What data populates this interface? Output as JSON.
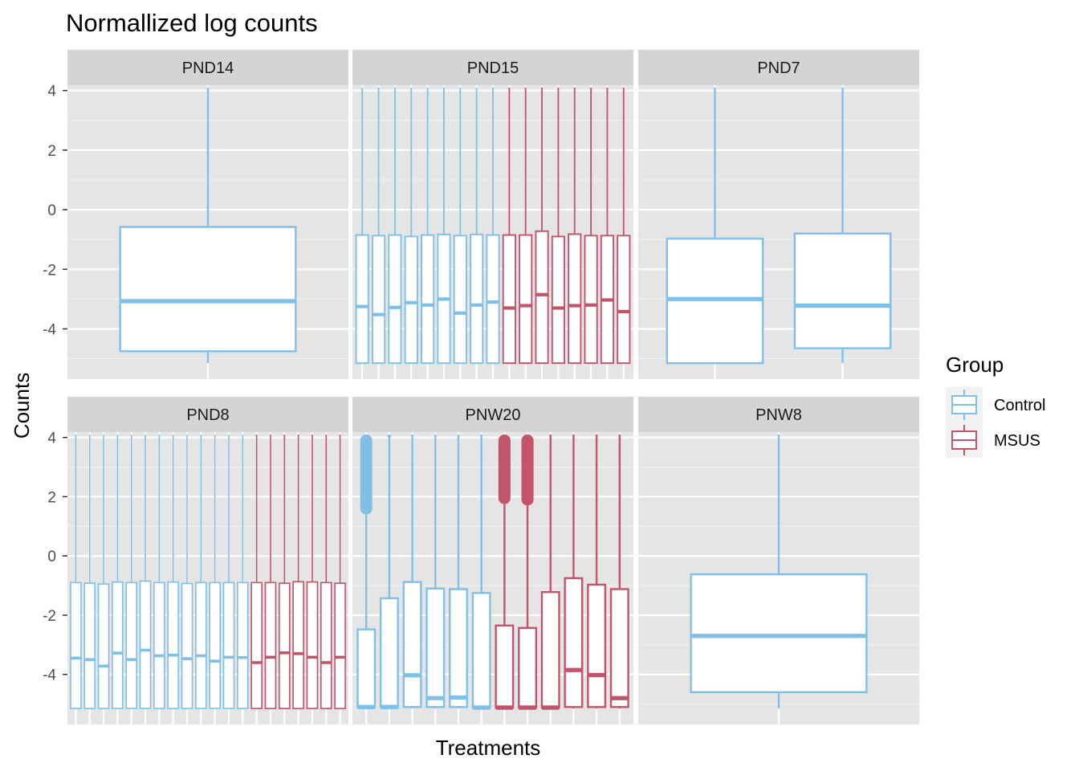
{
  "chart_data": {
    "type": "boxplot",
    "title": "Normallized log counts",
    "xlabel": "Treatments",
    "ylabel": "Counts",
    "ylim": [
      -5.2,
      4.1
    ],
    "yticks": [
      -4,
      -2,
      0,
      2,
      4
    ],
    "grid": true,
    "facet_layout": {
      "rows": 2,
      "cols": 3
    },
    "colors": {
      "Control": "#7fc0e8",
      "MSUS": "#c4546a"
    },
    "legend": {
      "title": "Group",
      "position": "right",
      "entries": [
        {
          "name": "Control",
          "color": "#7fc0e8"
        },
        {
          "name": "MSUS",
          "color": "#c4546a"
        }
      ]
    },
    "panels": [
      {
        "label": "PND14",
        "boxes": [
          {
            "group": "Control",
            "lower_whisker": -5.15,
            "q1": -4.75,
            "median": -3.07,
            "q3": -0.58,
            "upper_whisker": 4.1
          }
        ]
      },
      {
        "label": "PND15",
        "boxes": [
          {
            "group": "Control",
            "lower_whisker": -5.15,
            "q1": -5.15,
            "median": -3.25,
            "q3": -0.85,
            "upper_whisker": 4.1
          },
          {
            "group": "Control",
            "lower_whisker": -5.15,
            "q1": -5.15,
            "median": -3.52,
            "q3": -0.87,
            "upper_whisker": 4.1
          },
          {
            "group": "Control",
            "lower_whisker": -5.15,
            "q1": -5.15,
            "median": -3.28,
            "q3": -0.85,
            "upper_whisker": 4.1
          },
          {
            "group": "Control",
            "lower_whisker": -5.15,
            "q1": -5.15,
            "median": -3.12,
            "q3": -0.9,
            "upper_whisker": 4.1
          },
          {
            "group": "Control",
            "lower_whisker": -5.15,
            "q1": -5.15,
            "median": -3.2,
            "q3": -0.85,
            "upper_whisker": 4.1
          },
          {
            "group": "Control",
            "lower_whisker": -5.15,
            "q1": -5.15,
            "median": -3.0,
            "q3": -0.83,
            "upper_whisker": 4.1
          },
          {
            "group": "Control",
            "lower_whisker": -5.15,
            "q1": -5.15,
            "median": -3.47,
            "q3": -0.87,
            "upper_whisker": 4.1
          },
          {
            "group": "Control",
            "lower_whisker": -5.15,
            "q1": -5.15,
            "median": -3.2,
            "q3": -0.83,
            "upper_whisker": 4.1
          },
          {
            "group": "Control",
            "lower_whisker": -5.15,
            "q1": -5.15,
            "median": -3.1,
            "q3": -0.85,
            "upper_whisker": 4.1
          },
          {
            "group": "MSUS",
            "lower_whisker": -5.15,
            "q1": -5.15,
            "median": -3.3,
            "q3": -0.85,
            "upper_whisker": 4.1
          },
          {
            "group": "MSUS",
            "lower_whisker": -5.15,
            "q1": -5.15,
            "median": -3.22,
            "q3": -0.85,
            "upper_whisker": 4.1
          },
          {
            "group": "MSUS",
            "lower_whisker": -5.15,
            "q1": -5.15,
            "median": -2.85,
            "q3": -0.72,
            "upper_whisker": 4.1
          },
          {
            "group": "MSUS",
            "lower_whisker": -5.15,
            "q1": -5.15,
            "median": -3.3,
            "q3": -0.9,
            "upper_whisker": 4.1
          },
          {
            "group": "MSUS",
            "lower_whisker": -5.15,
            "q1": -5.15,
            "median": -3.22,
            "q3": -0.82,
            "upper_whisker": 4.1
          },
          {
            "group": "MSUS",
            "lower_whisker": -5.15,
            "q1": -5.15,
            "median": -3.2,
            "q3": -0.87,
            "upper_whisker": 4.1
          },
          {
            "group": "MSUS",
            "lower_whisker": -5.15,
            "q1": -5.15,
            "median": -3.03,
            "q3": -0.87,
            "upper_whisker": 4.1
          },
          {
            "group": "MSUS",
            "lower_whisker": -5.15,
            "q1": -5.15,
            "median": -3.42,
            "q3": -0.87,
            "upper_whisker": 4.1
          }
        ]
      },
      {
        "label": "PND7",
        "boxes": [
          {
            "group": "Control",
            "lower_whisker": -5.15,
            "q1": -5.15,
            "median": -3.0,
            "q3": -0.97,
            "upper_whisker": 4.1
          },
          {
            "group": "Control",
            "lower_whisker": -5.15,
            "q1": -4.65,
            "median": -3.22,
            "q3": -0.8,
            "upper_whisker": 4.1
          }
        ]
      },
      {
        "label": "PND8",
        "boxes": [
          {
            "group": "Control",
            "lower_whisker": -5.15,
            "q1": -5.15,
            "median": -3.45,
            "q3": -0.9,
            "upper_whisker": 4.1
          },
          {
            "group": "Control",
            "lower_whisker": -5.15,
            "q1": -5.15,
            "median": -3.5,
            "q3": -0.92,
            "upper_whisker": 4.1
          },
          {
            "group": "Control",
            "lower_whisker": -5.15,
            "q1": -5.15,
            "median": -3.72,
            "q3": -0.95,
            "upper_whisker": 4.1
          },
          {
            "group": "Control",
            "lower_whisker": -5.15,
            "q1": -5.15,
            "median": -3.28,
            "q3": -0.88,
            "upper_whisker": 4.1
          },
          {
            "group": "Control",
            "lower_whisker": -5.15,
            "q1": -5.15,
            "median": -3.5,
            "q3": -0.9,
            "upper_whisker": 4.1
          },
          {
            "group": "Control",
            "lower_whisker": -5.15,
            "q1": -5.15,
            "median": -3.18,
            "q3": -0.85,
            "upper_whisker": 4.1
          },
          {
            "group": "Control",
            "lower_whisker": -5.15,
            "q1": -5.15,
            "median": -3.37,
            "q3": -0.9,
            "upper_whisker": 4.1
          },
          {
            "group": "Control",
            "lower_whisker": -5.15,
            "q1": -5.15,
            "median": -3.35,
            "q3": -0.88,
            "upper_whisker": 4.1
          },
          {
            "group": "Control",
            "lower_whisker": -5.15,
            "q1": -5.15,
            "median": -3.47,
            "q3": -0.93,
            "upper_whisker": 4.1
          },
          {
            "group": "Control",
            "lower_whisker": -5.15,
            "q1": -5.15,
            "median": -3.37,
            "q3": -0.9,
            "upper_whisker": 4.1
          },
          {
            "group": "Control",
            "lower_whisker": -5.15,
            "q1": -5.15,
            "median": -3.55,
            "q3": -0.9,
            "upper_whisker": 4.1
          },
          {
            "group": "Control",
            "lower_whisker": -5.15,
            "q1": -5.15,
            "median": -3.42,
            "q3": -0.9,
            "upper_whisker": 4.1
          },
          {
            "group": "Control",
            "lower_whisker": -5.15,
            "q1": -5.15,
            "median": -3.43,
            "q3": -0.9,
            "upper_whisker": 4.1
          },
          {
            "group": "MSUS",
            "lower_whisker": -5.15,
            "q1": -5.15,
            "median": -3.6,
            "q3": -0.9,
            "upper_whisker": 4.1
          },
          {
            "group": "MSUS",
            "lower_whisker": -5.15,
            "q1": -5.15,
            "median": -3.42,
            "q3": -0.9,
            "upper_whisker": 4.1
          },
          {
            "group": "MSUS",
            "lower_whisker": -5.15,
            "q1": -5.15,
            "median": -3.27,
            "q3": -0.92,
            "upper_whisker": 4.1
          },
          {
            "group": "MSUS",
            "lower_whisker": -5.15,
            "q1": -5.15,
            "median": -3.3,
            "q3": -0.87,
            "upper_whisker": 4.1
          },
          {
            "group": "MSUS",
            "lower_whisker": -5.15,
            "q1": -5.15,
            "median": -3.42,
            "q3": -0.88,
            "upper_whisker": 4.1
          },
          {
            "group": "MSUS",
            "lower_whisker": -5.15,
            "q1": -5.15,
            "median": -3.6,
            "q3": -0.9,
            "upper_whisker": 4.1
          },
          {
            "group": "MSUS",
            "lower_whisker": -5.15,
            "q1": -5.15,
            "median": -3.42,
            "q3": -0.92,
            "upper_whisker": 4.1
          }
        ]
      },
      {
        "label": "PNW20",
        "boxes": [
          {
            "group": "Control",
            "lower_whisker": -5.15,
            "q1": -5.1,
            "median": -5.1,
            "q3": -2.48,
            "upper_whisker": 1.4,
            "outliers_from": 1.4,
            "outliers_to": 4.1,
            "heavy_outliers": true
          },
          {
            "group": "Control",
            "lower_whisker": -5.15,
            "q1": -5.1,
            "median": -5.1,
            "q3": -1.43,
            "upper_whisker": 4.05,
            "outliers_from": 4.05,
            "outliers_to": 4.1,
            "heavy_outliers": false
          },
          {
            "group": "Control",
            "lower_whisker": -5.15,
            "q1": -5.1,
            "median": -4.03,
            "q3": -0.88,
            "upper_whisker": 4.1
          },
          {
            "group": "Control",
            "lower_whisker": -5.15,
            "q1": -5.1,
            "median": -4.8,
            "q3": -1.1,
            "upper_whisker": 4.1
          },
          {
            "group": "Control",
            "lower_whisker": -5.15,
            "q1": -5.1,
            "median": -4.78,
            "q3": -1.12,
            "upper_whisker": 4.1
          },
          {
            "group": "Control",
            "lower_whisker": -5.15,
            "q1": -5.12,
            "median": -5.12,
            "q3": -1.25,
            "upper_whisker": 4.1
          },
          {
            "group": "MSUS",
            "lower_whisker": -5.15,
            "q1": -5.12,
            "median": -5.12,
            "q3": -2.35,
            "upper_whisker": 1.75,
            "outliers_from": 1.75,
            "outliers_to": 4.1,
            "heavy_outliers": true
          },
          {
            "group": "MSUS",
            "lower_whisker": -5.15,
            "q1": -5.12,
            "median": -5.12,
            "q3": -2.43,
            "upper_whisker": 1.7,
            "outliers_from": 1.7,
            "outliers_to": 4.1,
            "heavy_outliers": true
          },
          {
            "group": "MSUS",
            "lower_whisker": -5.15,
            "q1": -5.12,
            "median": -5.12,
            "q3": -1.22,
            "upper_whisker": 4.1
          },
          {
            "group": "MSUS",
            "lower_whisker": -5.15,
            "q1": -5.1,
            "median": -3.85,
            "q3": -0.75,
            "upper_whisker": 4.1
          },
          {
            "group": "MSUS",
            "lower_whisker": -5.15,
            "q1": -5.1,
            "median": -4.02,
            "q3": -0.97,
            "upper_whisker": 4.1
          },
          {
            "group": "MSUS",
            "lower_whisker": -5.15,
            "q1": -5.1,
            "median": -4.8,
            "q3": -1.12,
            "upper_whisker": 4.1
          }
        ]
      },
      {
        "label": "PNW8",
        "boxes": [
          {
            "group": "Control",
            "lower_whisker": -5.15,
            "q1": -4.6,
            "median": -2.7,
            "q3": -0.62,
            "upper_whisker": 4.1
          }
        ]
      }
    ]
  }
}
